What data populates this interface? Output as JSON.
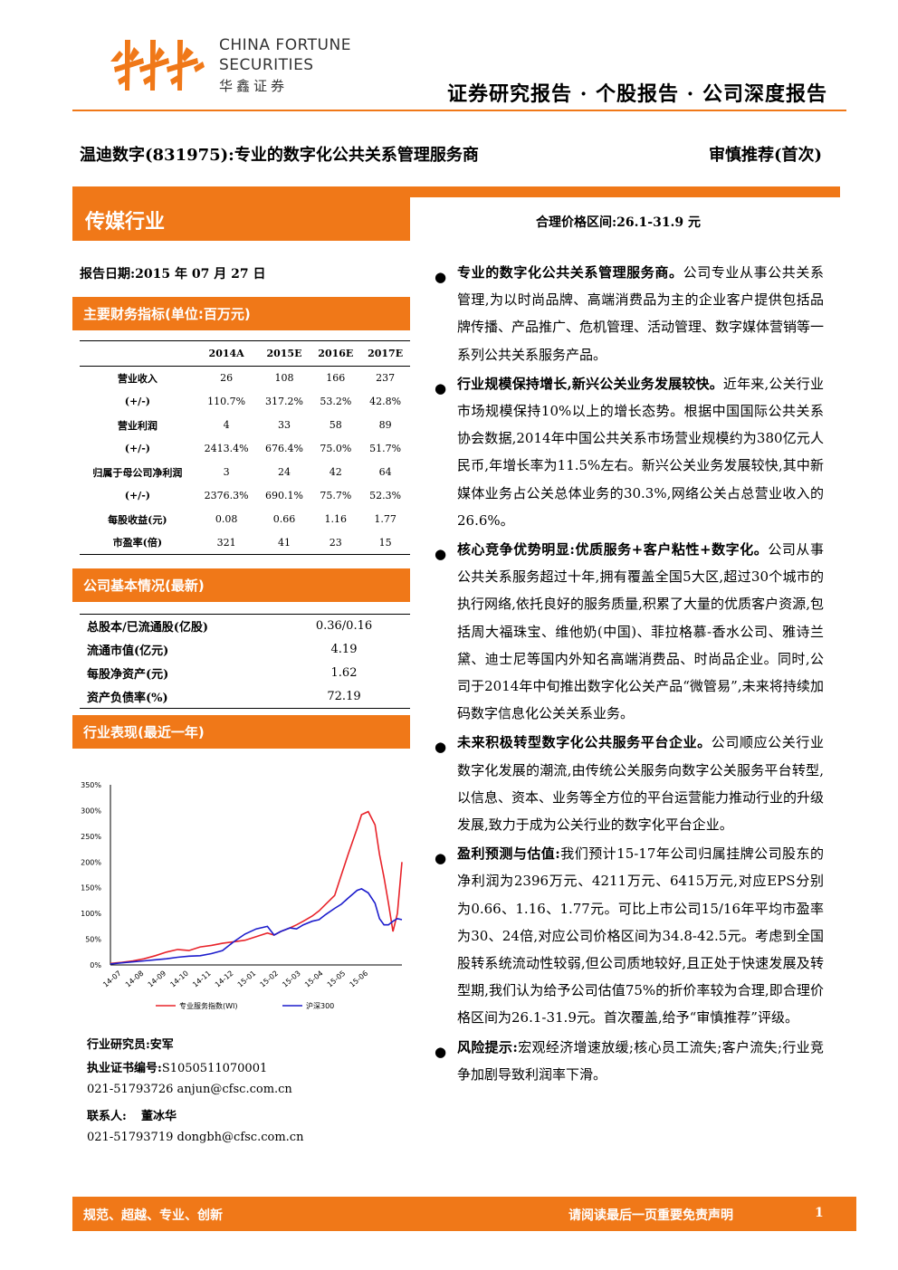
{
  "header": {
    "brand_en_line1": "CHINA FORTUNE",
    "brand_en_line2": "SECURITIES",
    "brand_cn": "华鑫证券",
    "report_type": "证券研究报告 · 个股报告 · 公司深度报告"
  },
  "title": "温迪数字(831975):专业的数字化公共关系管理服务商",
  "rating": "审慎推荐(首次)",
  "industry": "传媒行业",
  "price_range": "合理价格区间:26.1-31.9 元",
  "report_date": "报告日期:2015 年 07 月 27 日",
  "financial": {
    "heading": "主要财务指标(单位:百万元)",
    "columns": [
      "",
      "2014A",
      "2015E",
      "2016E",
      "2017E"
    ],
    "rows": [
      [
        "营业收入",
        "26",
        "108",
        "166",
        "237"
      ],
      [
        "(+/-)",
        "110.7%",
        "317.2%",
        "53.2%",
        "42.8%"
      ],
      [
        "营业利润",
        "4",
        "33",
        "58",
        "89"
      ],
      [
        "(+/-)",
        "2413.4%",
        "676.4%",
        "75.0%",
        "51.7%"
      ],
      [
        "归属于母公司净利润",
        "3",
        "24",
        "42",
        "64"
      ],
      [
        "(+/-)",
        "2376.3%",
        "690.1%",
        "75.7%",
        "52.3%"
      ],
      [
        "每股收益(元)",
        "0.08",
        "0.66",
        "1.16",
        "1.77"
      ],
      [
        "市盈率(倍)",
        "321",
        "41",
        "23",
        "15"
      ]
    ]
  },
  "basic": {
    "heading": "公司基本情况(最新)",
    "rows": [
      [
        "总股本/已流通股(亿股)",
        "0.36/0.16"
      ],
      [
        "流通市值(亿元)",
        "4.19"
      ],
      [
        "每股净资产(元)",
        "1.62"
      ],
      [
        "资产负债率(%)",
        "72.19"
      ]
    ]
  },
  "perf_heading": "行业表现(最近一年)",
  "chart_data": {
    "type": "line",
    "ylim": [
      0,
      350
    ],
    "y_ticks": [
      "350%",
      "300%",
      "250%",
      "200%",
      "150%",
      "100%",
      "50%",
      "0%"
    ],
    "x_ticks": [
      "14-07",
      "14-08",
      "14-09",
      "14-10",
      "14-11",
      "14-12",
      "15-01",
      "15-02",
      "15-03",
      "15-04",
      "15-05",
      "15-06"
    ],
    "series": [
      {
        "name": "专业服务指数(WI)",
        "color": "#e8232a",
        "x": [
          0,
          0.5,
          1,
          1.5,
          2,
          2.5,
          3,
          3.5,
          4,
          4.5,
          5,
          5.5,
          6,
          6.5,
          7,
          7.3,
          7.6,
          8,
          8.3,
          8.6,
          9,
          9.3,
          9.6,
          10,
          10.3,
          10.6,
          11,
          11.2,
          11.5,
          11.8,
          12,
          12.2,
          12.4,
          12.6,
          12.8,
          13
        ],
        "values": [
          3,
          5,
          8,
          12,
          18,
          25,
          30,
          28,
          35,
          38,
          42,
          45,
          48,
          55,
          62,
          58,
          65,
          72,
          78,
          85,
          95,
          105,
          118,
          135,
          175,
          215,
          265,
          292,
          298,
          272,
          215,
          170,
          120,
          65,
          100,
          200
        ]
      },
      {
        "name": "沪深300",
        "color": "#1c1ccc",
        "x": [
          0,
          0.5,
          1,
          1.5,
          2,
          2.5,
          3,
          3.5,
          4,
          4.5,
          5,
          5.5,
          6,
          6.5,
          7,
          7.3,
          7.6,
          8,
          8.3,
          8.6,
          9,
          9.3,
          9.6,
          10,
          10.3,
          10.6,
          11,
          11.2,
          11.5,
          11.8,
          12,
          12.2,
          12.4,
          12.6,
          12.8,
          13
        ],
        "values": [
          2,
          4,
          6,
          8,
          10,
          12,
          15,
          17,
          18,
          22,
          28,
          45,
          60,
          70,
          75,
          58,
          65,
          72,
          70,
          78,
          85,
          88,
          98,
          110,
          118,
          130,
          145,
          148,
          140,
          120,
          90,
          78,
          78,
          85,
          90,
          88
        ]
      }
    ]
  },
  "analysts": {
    "line1": "行业研究员:安军",
    "line2": "执业证书编号:S1050511070001",
    "line3": "021-51793726    anjun@cfsc.com.cn",
    "line4_label": "联系人:",
    "line4_name": "董冰华",
    "line5": "021-51793719    dongbh@cfsc.com.cn"
  },
  "bullets": [
    {
      "title": "专业的数字化公共关系管理服务商。",
      "body": "公司专业从事公共关系管理,为以时尚品牌、高端消费品为主的企业客户提供包括品牌传播、产品推广、危机管理、活动管理、数字媒体营销等一系列公共关系服务产品。"
    },
    {
      "title": "行业规模保持增长,新兴公关业务发展较快。",
      "body": "近年来,公关行业市场规模保持10%以上的增长态势。根据中国国际公共关系协会数据,2014年中国公共关系市场营业规模约为380亿元人民币,年增长率为11.5%左右。新兴公关业务发展较快,其中新媒体业务占公关总体业务的30.3%,网络公关占总营业收入的26.6%。"
    },
    {
      "title": "核心竞争优势明显:优质服务+客户粘性+数字化。",
      "body": "公司从事公共关系服务超过十年,拥有覆盖全国5大区,超过30个城市的执行网络,依托良好的服务质量,积累了大量的优质客户资源,包括周大福珠宝、维他奶(中国)、菲拉格慕-香水公司、雅诗兰黛、迪士尼等国内外知名高端消费品、时尚品企业。同时,公司于2014年中旬推出数字化公关产品“微管易”,未来将持续加码数字信息化公关关系业务。"
    },
    {
      "title": "未来积极转型数字化公共服务平台企业。",
      "body": "公司顺应公关行业数字化发展的潮流,由传统公关服务向数字公关服务平台转型,以信息、资本、业务等全方位的平台运营能力推动行业的升级发展,致力于成为公关行业的数字化平台企业。"
    },
    {
      "title": "盈利预测与估值:",
      "body": "我们预计15-17年公司归属挂牌公司股东的净利润为2396万元、4211万元、6415万元,对应EPS分别为0.66、1.16、1.77元。可比上市公司15/16年平均市盈率为30、24倍,对应公司价格区间为34.8-42.5元。考虑到全国股转系统流动性较弱,但公司质地较好,且正处于快速发展及转型期,我们认为给予公司估值75%的折价率较为合理,即合理价格区间为26.1-31.9元。首次覆盖,给予“审慎推荐”评级。"
    },
    {
      "title": "风险提示:",
      "body": "宏观经济增速放缓;核心员工流失;客户流失;行业竞争加剧导致利润率下滑。"
    }
  ],
  "footer": {
    "left": "规范、超越、专业、创新",
    "right": "请阅读最后一页重要免责声明",
    "page": "1"
  }
}
